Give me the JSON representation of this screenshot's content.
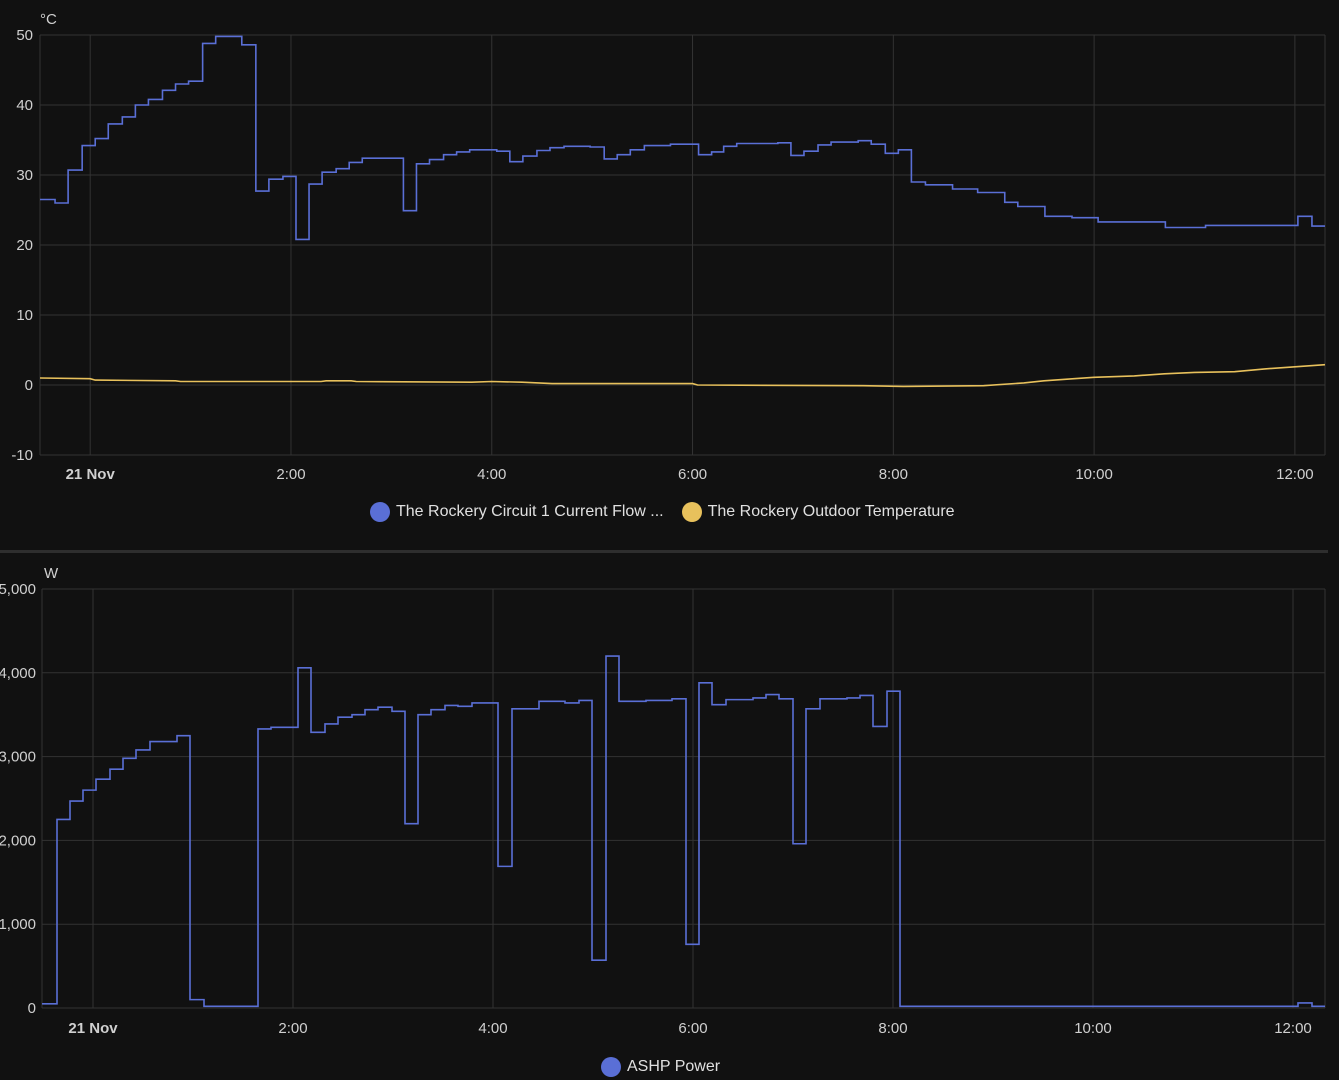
{
  "chart_data": [
    {
      "type": "line",
      "unit": "°C",
      "ylim": [
        -10,
        50
      ],
      "yticks": [
        "50",
        "40",
        "30",
        "20",
        "10",
        "0",
        "-10"
      ],
      "ytick_values": [
        50,
        40,
        30,
        20,
        10,
        0,
        -10
      ],
      "xlim_hours": [
        -0.5,
        12.3
      ],
      "xticks": [
        {
          "label": "21 Nov",
          "hour": 0,
          "bold": true
        },
        {
          "label": "2:00",
          "hour": 2
        },
        {
          "label": "4:00",
          "hour": 4
        },
        {
          "label": "6:00",
          "hour": 6
        },
        {
          "label": "8:00",
          "hour": 8
        },
        {
          "label": "10:00",
          "hour": 10
        },
        {
          "label": "12:00",
          "hour": 12
        }
      ],
      "grid": true,
      "legend_position": "bottom-center",
      "series": [
        {
          "name": "The Rockery Circuit 1 Current Flow ...",
          "color": "#5a6fd6",
          "step": true,
          "points": [
            [
              -0.5,
              26.5
            ],
            [
              -0.35,
              26.0
            ],
            [
              -0.22,
              30.7
            ],
            [
              -0.08,
              34.2
            ],
            [
              0.05,
              35.2
            ],
            [
              0.18,
              37.3
            ],
            [
              0.32,
              38.3
            ],
            [
              0.45,
              40.0
            ],
            [
              0.58,
              40.8
            ],
            [
              0.72,
              42.1
            ],
            [
              0.85,
              43.0
            ],
            [
              0.98,
              43.4
            ],
            [
              1.12,
              48.8
            ],
            [
              1.25,
              49.8
            ],
            [
              1.51,
              48.6
            ],
            [
              1.65,
              27.7
            ],
            [
              1.78,
              29.4
            ],
            [
              1.92,
              29.8
            ],
            [
              2.05,
              20.8
            ],
            [
              2.18,
              28.7
            ],
            [
              2.31,
              30.4
            ],
            [
              2.45,
              30.9
            ],
            [
              2.58,
              31.8
            ],
            [
              2.71,
              32.4
            ],
            [
              3.12,
              24.9
            ],
            [
              3.25,
              31.6
            ],
            [
              3.38,
              32.2
            ],
            [
              3.52,
              32.9
            ],
            [
              3.65,
              33.3
            ],
            [
              3.78,
              33.6
            ],
            [
              4.05,
              33.4
            ],
            [
              4.18,
              31.9
            ],
            [
              4.31,
              32.7
            ],
            [
              4.45,
              33.5
            ],
            [
              4.58,
              33.9
            ],
            [
              4.72,
              34.1
            ],
            [
              4.98,
              34.0
            ],
            [
              5.12,
              32.3
            ],
            [
              5.25,
              32.9
            ],
            [
              5.38,
              33.6
            ],
            [
              5.52,
              34.2
            ],
            [
              5.78,
              34.4
            ],
            [
              6.06,
              32.9
            ],
            [
              6.19,
              33.3
            ],
            [
              6.31,
              34.1
            ],
            [
              6.44,
              34.5
            ],
            [
              6.85,
              34.6
            ],
            [
              6.98,
              32.8
            ],
            [
              7.11,
              33.4
            ],
            [
              7.25,
              34.3
            ],
            [
              7.38,
              34.7
            ],
            [
              7.65,
              34.9
            ],
            [
              7.78,
              34.4
            ],
            [
              7.92,
              33.1
            ],
            [
              8.05,
              33.6
            ],
            [
              8.18,
              29.0
            ],
            [
              8.32,
              28.6
            ],
            [
              8.59,
              28.0
            ],
            [
              8.84,
              27.5
            ],
            [
              9.11,
              26.1
            ],
            [
              9.24,
              25.5
            ],
            [
              9.51,
              24.1
            ],
            [
              9.78,
              23.9
            ],
            [
              10.04,
              23.3
            ],
            [
              10.71,
              22.5
            ],
            [
              11.11,
              22.8
            ],
            [
              12.03,
              24.1
            ],
            [
              12.17,
              22.7
            ],
            [
              12.3,
              22.7
            ]
          ]
        },
        {
          "name": "The Rockery Outdoor Temperature",
          "color": "#e8c15c",
          "step": false,
          "points": [
            [
              -0.5,
              1.0
            ],
            [
              0.0,
              0.9
            ],
            [
              0.05,
              0.7
            ],
            [
              0.85,
              0.6
            ],
            [
              0.9,
              0.5
            ],
            [
              2.3,
              0.5
            ],
            [
              2.35,
              0.6
            ],
            [
              2.6,
              0.6
            ],
            [
              2.65,
              0.5
            ],
            [
              3.8,
              0.4
            ],
            [
              4.0,
              0.5
            ],
            [
              4.3,
              0.4
            ],
            [
              4.6,
              0.2
            ],
            [
              6.0,
              0.2
            ],
            [
              6.05,
              0.0
            ],
            [
              7.7,
              -0.1
            ],
            [
              8.1,
              -0.2
            ],
            [
              8.9,
              -0.1
            ],
            [
              9.3,
              0.3
            ],
            [
              9.5,
              0.6
            ],
            [
              9.8,
              0.9
            ],
            [
              10.0,
              1.1
            ],
            [
              10.4,
              1.3
            ],
            [
              10.7,
              1.6
            ],
            [
              11.0,
              1.8
            ],
            [
              11.4,
              1.9
            ],
            [
              11.7,
              2.3
            ],
            [
              12.0,
              2.6
            ],
            [
              12.3,
              2.9
            ]
          ]
        }
      ]
    },
    {
      "type": "line",
      "unit": "W",
      "ylim": [
        0,
        5000
      ],
      "yticks": [
        "5,000",
        "4,000",
        "3,000",
        "2,000",
        "1,000",
        "0"
      ],
      "ytick_values": [
        5000,
        4000,
        3000,
        2000,
        1000,
        0
      ],
      "xlim_hours": [
        -0.51,
        12.32
      ],
      "xticks": [
        {
          "label": "21 Nov",
          "hour": 0,
          "bold": true
        },
        {
          "label": "2:00",
          "hour": 2
        },
        {
          "label": "4:00",
          "hour": 4
        },
        {
          "label": "6:00",
          "hour": 6
        },
        {
          "label": "8:00",
          "hour": 8
        },
        {
          "label": "10:00",
          "hour": 10
        },
        {
          "label": "12:00",
          "hour": 12
        }
      ],
      "grid": true,
      "legend_position": "bottom-center",
      "series": [
        {
          "name": "ASHP Power",
          "color": "#5a6fd6",
          "step": true,
          "points": [
            [
              -0.51,
              50
            ],
            [
              -0.36,
              2250
            ],
            [
              -0.23,
              2470
            ],
            [
              -0.1,
              2600
            ],
            [
              0.03,
              2730
            ],
            [
              0.17,
              2850
            ],
            [
              0.3,
              2980
            ],
            [
              0.43,
              3080
            ],
            [
              0.57,
              3180
            ],
            [
              0.84,
              3250
            ],
            [
              0.97,
              100
            ],
            [
              1.11,
              20
            ],
            [
              1.65,
              3330
            ],
            [
              1.78,
              3350
            ],
            [
              2.05,
              4060
            ],
            [
              2.18,
              3290
            ],
            [
              2.32,
              3390
            ],
            [
              2.45,
              3470
            ],
            [
              2.59,
              3500
            ],
            [
              2.72,
              3560
            ],
            [
              2.85,
              3590
            ],
            [
              2.99,
              3540
            ],
            [
              3.12,
              2200
            ],
            [
              3.25,
              3500
            ],
            [
              3.38,
              3560
            ],
            [
              3.52,
              3610
            ],
            [
              3.65,
              3600
            ],
            [
              3.79,
              3640
            ],
            [
              4.05,
              1690
            ],
            [
              4.19,
              3570
            ],
            [
              4.46,
              3660
            ],
            [
              4.72,
              3640
            ],
            [
              4.86,
              3670
            ],
            [
              4.99,
              570
            ],
            [
              5.13,
              4200
            ],
            [
              5.26,
              3660
            ],
            [
              5.53,
              3670
            ],
            [
              5.79,
              3690
            ],
            [
              5.93,
              760
            ],
            [
              6.06,
              3880
            ],
            [
              6.19,
              3620
            ],
            [
              6.33,
              3680
            ],
            [
              6.6,
              3700
            ],
            [
              6.73,
              3740
            ],
            [
              6.86,
              3690
            ],
            [
              7.0,
              1960
            ],
            [
              7.13,
              3570
            ],
            [
              7.27,
              3690
            ],
            [
              7.54,
              3700
            ],
            [
              7.67,
              3730
            ],
            [
              7.8,
              3360
            ],
            [
              7.94,
              3780
            ],
            [
              8.07,
              20
            ],
            [
              12.05,
              60
            ],
            [
              12.19,
              20
            ],
            [
              12.32,
              20
            ]
          ]
        }
      ]
    }
  ]
}
